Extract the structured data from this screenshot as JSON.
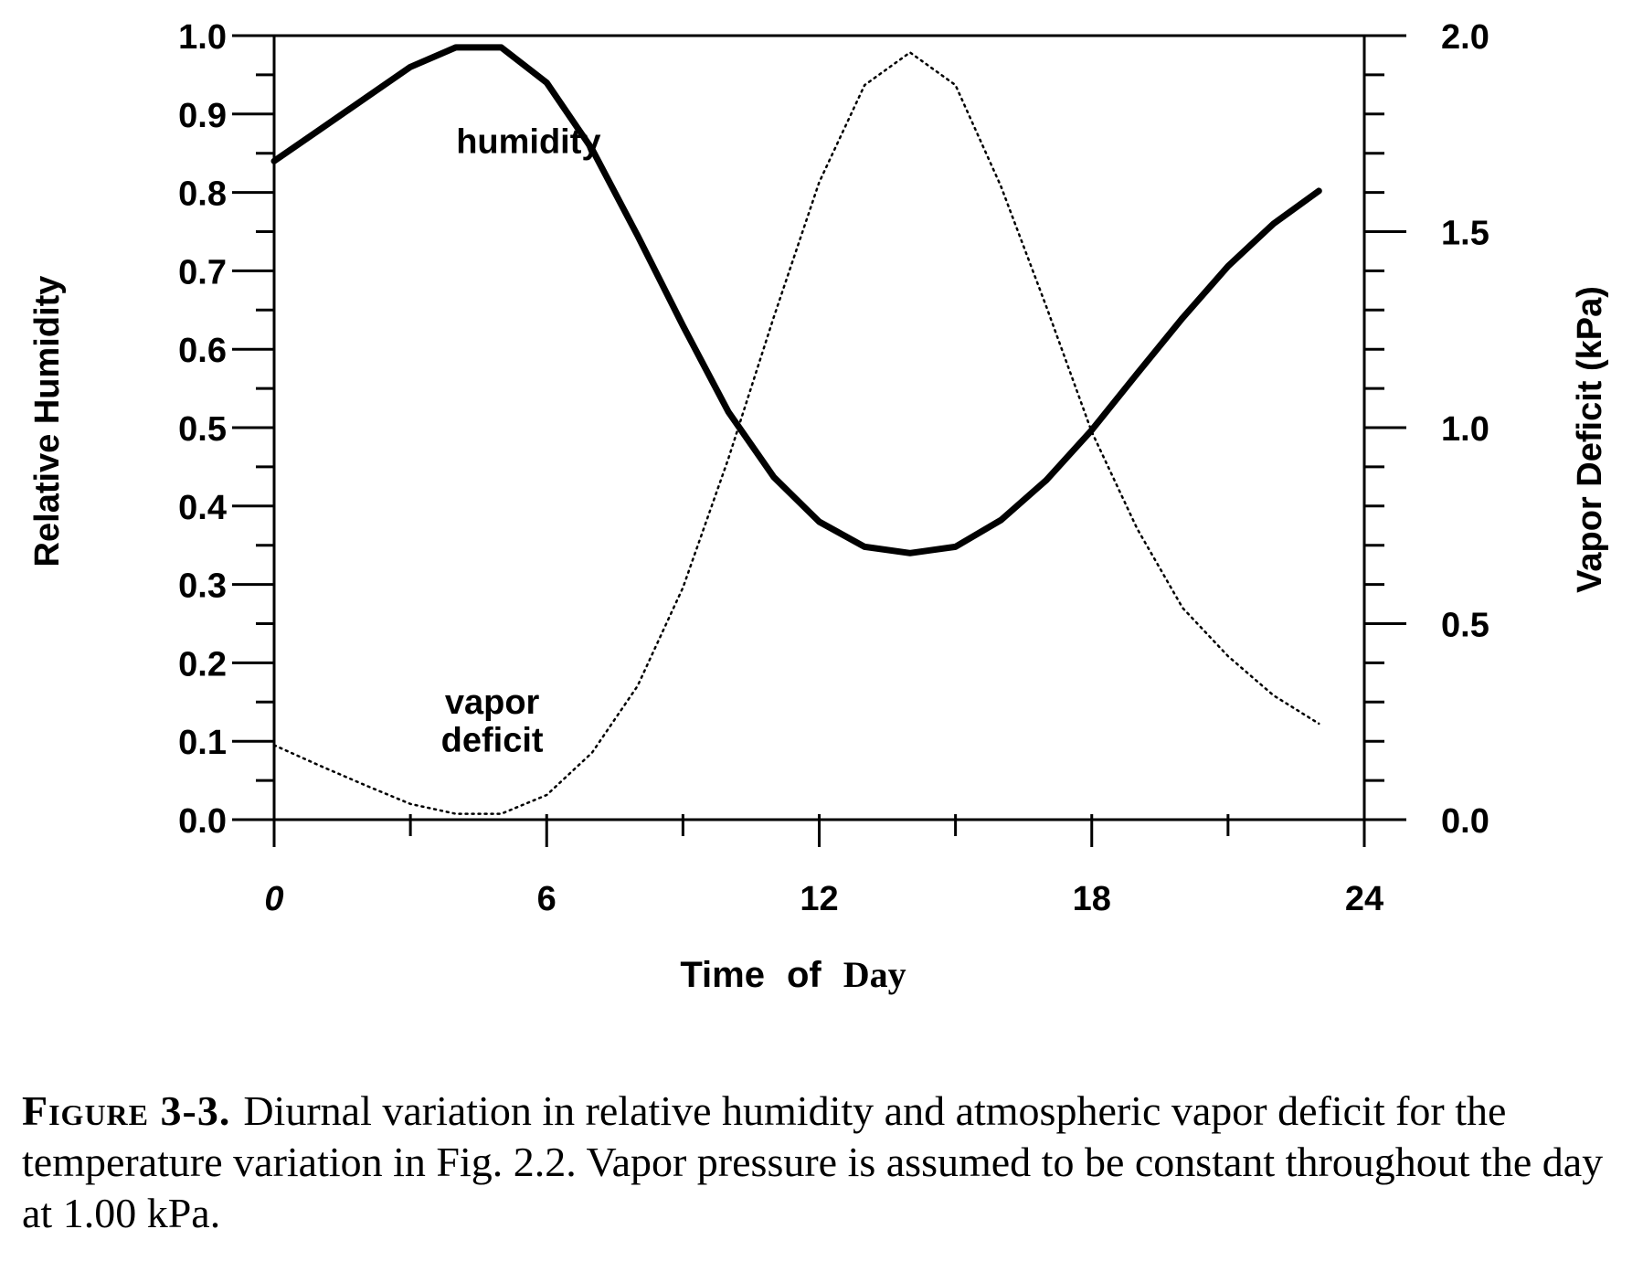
{
  "chart_data": {
    "type": "line",
    "xlabel_part1": "Time",
    "xlabel_part2": "of",
    "xlabel_part3": "Day",
    "ylabel_left": "Relative Humidity",
    "ylabel_right": "Vapor Deficit (kPa)",
    "xlim": [
      0,
      24
    ],
    "ylim_left": [
      0.0,
      1.0
    ],
    "ylim_right": [
      0.0,
      2.0
    ],
    "x_ticks": [
      "0",
      "6",
      "12",
      "18",
      "24"
    ],
    "y_left_ticks": [
      "0.0",
      "0.1",
      "0.2",
      "0.3",
      "0.4",
      "0.5",
      "0.6",
      "0.7",
      "0.8",
      "0.9",
      "1.0"
    ],
    "y_right_ticks": [
      "0.0",
      "0.5",
      "1.0",
      "1.5",
      "2.0"
    ],
    "grid": false,
    "series": [
      {
        "name": "humidity",
        "axis": "left",
        "style": "solid",
        "x": [
          0,
          1,
          2,
          3,
          4,
          5,
          6,
          7,
          8,
          9,
          10,
          11,
          12,
          13,
          14,
          15,
          16,
          17,
          18,
          19,
          20,
          21,
          22,
          23
        ],
        "values": [
          0.84,
          0.88,
          0.92,
          0.96,
          0.985,
          0.985,
          0.94,
          0.855,
          0.745,
          0.63,
          0.52,
          0.437,
          0.38,
          0.348,
          0.34,
          0.348,
          0.382,
          0.433,
          0.497,
          0.569,
          0.64,
          0.706,
          0.76,
          0.802
        ]
      },
      {
        "name": "vapor deficit",
        "axis": "right",
        "style": "dotted",
        "x": [
          0,
          1,
          2,
          3,
          4,
          5,
          6,
          7,
          8,
          9,
          10,
          11,
          12,
          13,
          14,
          15,
          16,
          17,
          18,
          19,
          20,
          21,
          22,
          23
        ],
        "values": [
          0.19,
          0.138,
          0.088,
          0.04,
          0.015,
          0.015,
          0.063,
          0.171,
          0.341,
          0.592,
          0.921,
          1.282,
          1.626,
          1.874,
          1.957,
          1.874,
          1.616,
          1.309,
          0.989,
          0.742,
          0.54,
          0.417,
          0.317,
          0.245
        ]
      }
    ],
    "annotations": [
      {
        "text": "humidity",
        "x": 5.6,
        "y_left": 0.85
      },
      {
        "text": "vapor",
        "x": 4.8,
        "y_left": 0.135
      },
      {
        "text": "deficit",
        "x": 4.8,
        "y_left": 0.087
      }
    ]
  },
  "caption": {
    "label": "Figure 3-3.",
    "text": "Diurnal variation in relative humidity and atmospheric vapor deficit for the temperature variation in Fig. 2.2. Vapor pressure is assumed to be constant throughout the day at 1.00 kPa."
  }
}
